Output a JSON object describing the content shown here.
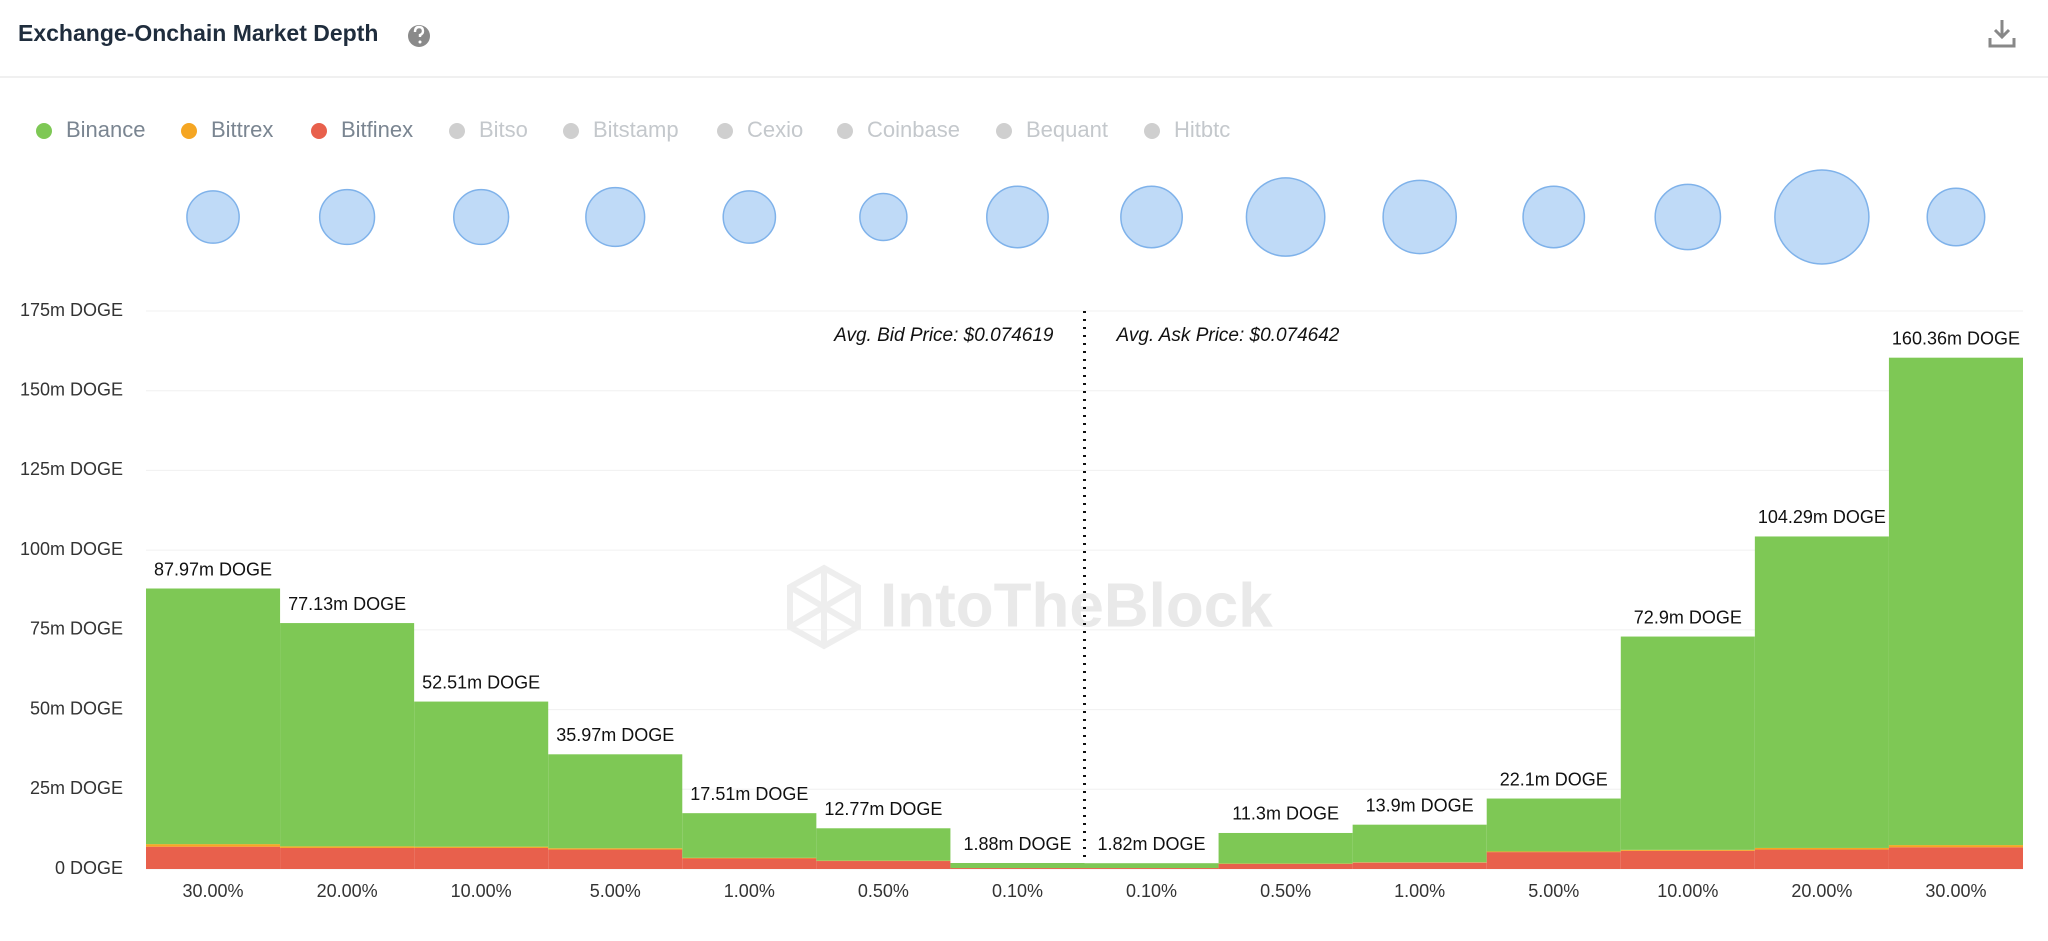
{
  "chart_data": {
    "type": "stacked_bar",
    "title": "Exchange-Onchain Market Depth",
    "categories": [
      "30.00%",
      "20.00%",
      "10.00%",
      "5.00%",
      "1.00%",
      "0.50%",
      "0.10%",
      "0.10%",
      "0.50%",
      "1.00%",
      "5.00%",
      "10.00%",
      "20.00%",
      "30.00%"
    ],
    "series": [
      {
        "name": "Binance",
        "color": "#7ec855",
        "values": [
          80.17,
          70.03,
          45.51,
          29.47,
          14.01,
          10.17,
          1.58,
          1.52,
          9.6,
          11.8,
          16.6,
          66.9,
          97.69,
          152.86
        ]
      },
      {
        "name": "Bittrex",
        "color": "#f5a623",
        "values": [
          0.8,
          0.5,
          0.4,
          0.4,
          0.2,
          0.1,
          0,
          0,
          0.1,
          0.1,
          0.2,
          0.3,
          0.5,
          0.7
        ]
      },
      {
        "name": "Bitfinex",
        "color": "#e8604c",
        "values": [
          7,
          6.6,
          6.6,
          6.1,
          3.3,
          2.5,
          0.3,
          0.3,
          1.6,
          2,
          5.3,
          5.7,
          6.1,
          6.8
        ]
      }
    ],
    "inactive_legend": [
      "Bitso",
      "Bitstamp",
      "Cexio",
      "Coinbase",
      "Bequant",
      "Hitbtc"
    ],
    "totals": [
      87.97,
      77.13,
      52.51,
      35.97,
      17.51,
      12.77,
      1.88,
      1.82,
      11.3,
      13.9,
      22.1,
      72.9,
      104.29,
      160.36
    ],
    "total_labels": [
      "87.97m DOGE",
      "77.13m DOGE",
      "52.51m DOGE",
      "35.97m DOGE",
      "17.51m DOGE",
      "12.77m DOGE",
      "1.88m DOGE",
      "1.82m DOGE",
      "11.3m DOGE",
      "13.9m DOGE",
      "22.1m DOGE",
      "72.9m DOGE",
      "104.29m DOGE",
      "160.36m DOGE"
    ],
    "bubbles": [
      40,
      42,
      42,
      45,
      40,
      36,
      47,
      47,
      60,
      56,
      47,
      50,
      72,
      44
    ],
    "ylim": [
      0,
      175
    ],
    "yticks": [
      {
        "value": 0,
        "label": "0 DOGE"
      },
      {
        "value": 25,
        "label": "25m DOGE"
      },
      {
        "value": 50,
        "label": "50m DOGE"
      },
      {
        "value": 75,
        "label": "75m DOGE"
      },
      {
        "value": 100,
        "label": "100m DOGE"
      },
      {
        "value": 125,
        "label": "125m DOGE"
      },
      {
        "value": 150,
        "label": "150m DOGE"
      },
      {
        "value": 175,
        "label": "175m DOGE"
      }
    ],
    "grid": true,
    "annotations": [
      "Avg. Bid Price: $0.074619",
      "Avg. Ask Price: $0.074642"
    ],
    "watermark": "IntoTheBlock"
  }
}
